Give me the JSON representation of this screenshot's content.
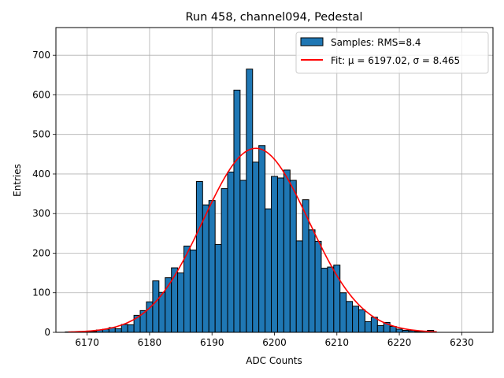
{
  "chart_data": {
    "type": "bar",
    "title": "Run 458, channel094, Pedestal",
    "xlabel": "ADC Counts",
    "ylabel": "Entries",
    "xlim": [
      6165,
      6235
    ],
    "ylim": [
      0,
      770
    ],
    "xticks": [
      6170,
      6180,
      6190,
      6200,
      6210,
      6220,
      6230
    ],
    "yticks": [
      0,
      100,
      200,
      300,
      400,
      500,
      600,
      700
    ],
    "grid": true,
    "legend_position": "top-right",
    "bin_width": 1,
    "series": [
      {
        "name": "Samples: RMS=8.4",
        "kind": "histogram",
        "color": "#1f77b4",
        "edge_color": "#000000",
        "bins": [
          [
            6167,
            1
          ],
          [
            6168,
            1
          ],
          [
            6169,
            1
          ],
          [
            6170,
            1
          ],
          [
            6171,
            2
          ],
          [
            6172,
            6
          ],
          [
            6173,
            8
          ],
          [
            6174,
            12
          ],
          [
            6175,
            9
          ],
          [
            6176,
            20
          ],
          [
            6177,
            19
          ],
          [
            6178,
            43
          ],
          [
            6179,
            55
          ],
          [
            6180,
            77
          ],
          [
            6181,
            130
          ],
          [
            6182,
            101
          ],
          [
            6183,
            138
          ],
          [
            6184,
            163
          ],
          [
            6185,
            150
          ],
          [
            6186,
            218
          ],
          [
            6187,
            208
          ],
          [
            6188,
            381
          ],
          [
            6189,
            322
          ],
          [
            6190,
            333
          ],
          [
            6191,
            222
          ],
          [
            6192,
            363
          ],
          [
            6193,
            405
          ],
          [
            6194,
            612
          ],
          [
            6195,
            384
          ],
          [
            6196,
            665
          ],
          [
            6197,
            430
          ],
          [
            6198,
            472
          ],
          [
            6199,
            312
          ],
          [
            6200,
            394
          ],
          [
            6201,
            390
          ],
          [
            6202,
            410
          ],
          [
            6203,
            384
          ],
          [
            6204,
            231
          ],
          [
            6205,
            335
          ],
          [
            6206,
            259
          ],
          [
            6207,
            230
          ],
          [
            6208,
            162
          ],
          [
            6209,
            165
          ],
          [
            6210,
            170
          ],
          [
            6211,
            100
          ],
          [
            6212,
            78
          ],
          [
            6213,
            66
          ],
          [
            6214,
            57
          ],
          [
            6215,
            27
          ],
          [
            6216,
            38
          ],
          [
            6217,
            17
          ],
          [
            6218,
            25
          ],
          [
            6219,
            15
          ],
          [
            6220,
            8
          ],
          [
            6221,
            5
          ],
          [
            6222,
            4
          ],
          [
            6223,
            2
          ],
          [
            6224,
            2
          ],
          [
            6225,
            5
          ]
        ]
      },
      {
        "name": "Fit: μ = 6197.02, σ = 8.465",
        "kind": "gaussian-line",
        "color": "#ff0000",
        "mu": 6197.02,
        "sigma": 8.465,
        "amplitude": 465,
        "x_range": [
          6167,
          6226
        ]
      }
    ]
  }
}
